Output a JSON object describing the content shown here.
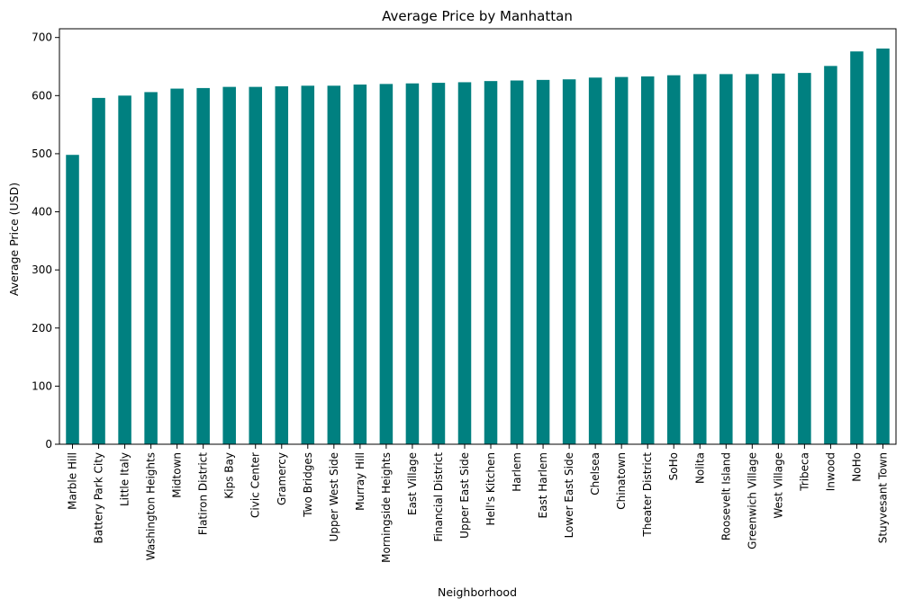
{
  "chart_data": {
    "type": "bar",
    "title": "Average Price by Manhattan",
    "xlabel": "Neighborhood",
    "ylabel": "Average Price (USD)",
    "ylim": [
      0,
      715
    ],
    "yticks": [
      0,
      100,
      200,
      300,
      400,
      500,
      600,
      700
    ],
    "bar_color": "#008080",
    "grid": false,
    "categories": [
      "Marble Hill",
      "Battery Park City",
      "Little Italy",
      "Washington Heights",
      "Midtown",
      "Flatiron District",
      "Kips Bay",
      "Civic Center",
      "Gramercy",
      "Two Bridges",
      "Upper West Side",
      "Murray Hill",
      "Morningside Heights",
      "East Village",
      "Financial District",
      "Upper East Side",
      "Hell's Kitchen",
      "Harlem",
      "East Harlem",
      "Lower East Side",
      "Chelsea",
      "Chinatown",
      "Theater District",
      "SoHo",
      "Nolita",
      "Roosevelt Island",
      "Greenwich Village",
      "West Village",
      "Tribeca",
      "Inwood",
      "NoHo",
      "Stuyvesant Town"
    ],
    "values": [
      498,
      596,
      600,
      606,
      612,
      613,
      615,
      615,
      616,
      617,
      617,
      619,
      620,
      621,
      622,
      623,
      625,
      626,
      627,
      628,
      631,
      632,
      633,
      635,
      637,
      637,
      637,
      638,
      639,
      651,
      676,
      681
    ]
  }
}
